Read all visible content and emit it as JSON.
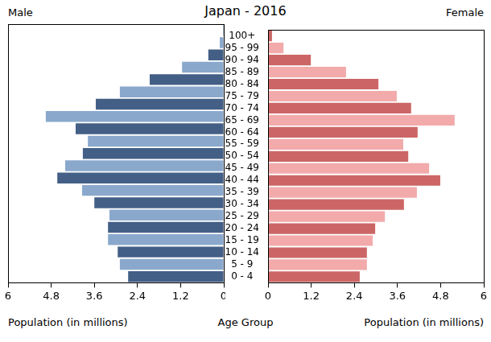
{
  "chart_data": {
    "type": "bar",
    "orientation": "horizontal",
    "title": "Japan - 2016",
    "x_label": "Population (in millions)",
    "y_label": "Age Group",
    "categories": [
      "0 - 4",
      "5 - 9",
      "10 - 14",
      "15 - 19",
      "20 - 24",
      "25 - 29",
      "30 - 34",
      "35 - 39",
      "40 - 44",
      "45 - 49",
      "50 - 54",
      "55 - 59",
      "60 - 64",
      "65 - 69",
      "70 - 74",
      "75 - 79",
      "80 - 84",
      "85 - 89",
      "90 - 94",
      "95 - 99",
      "100+"
    ],
    "series": [
      {
        "name": "Male",
        "values": [
          2.66,
          2.89,
          2.95,
          3.22,
          3.22,
          3.18,
          3.6,
          3.94,
          4.63,
          4.41,
          3.92,
          3.78,
          4.12,
          4.95,
          3.56,
          2.89,
          2.06,
          1.16,
          0.43,
          0.11,
          0.02
        ],
        "colors": [
          "#435f86",
          "#8aa8cc",
          "#435f86",
          "#8aa8cc",
          "#435f86",
          "#8aa8cc",
          "#435f86",
          "#8aa8cc",
          "#435f86",
          "#8aa8cc",
          "#435f86",
          "#8aa8cc",
          "#435f86",
          "#8aa8cc",
          "#435f86",
          "#8aa8cc",
          "#435f86",
          "#8aa8cc",
          "#435f86",
          "#8aa8cc",
          "#435f86"
        ]
      },
      {
        "name": "Female",
        "values": [
          2.55,
          2.75,
          2.75,
          2.91,
          2.98,
          3.25,
          3.78,
          4.14,
          4.79,
          4.48,
          3.9,
          3.76,
          4.16,
          5.19,
          3.98,
          3.58,
          3.07,
          2.17,
          1.19,
          0.43,
          0.11
        ],
        "colors": [
          "#cc6666",
          "#f2aaaa",
          "#cc6666",
          "#f2aaaa",
          "#cc6666",
          "#f2aaaa",
          "#cc6666",
          "#f2aaaa",
          "#cc6666",
          "#f2aaaa",
          "#cc6666",
          "#f2aaaa",
          "#cc6666",
          "#f2aaaa",
          "#cc6666",
          "#f2aaaa",
          "#cc6666",
          "#f2aaaa",
          "#cc6666",
          "#f2aaaa",
          "#cc6666"
        ]
      }
    ],
    "xlim": [
      0,
      6
    ],
    "xticks": [
      0,
      1.2,
      2.4,
      3.6,
      4.8,
      6
    ],
    "grid": false
  }
}
